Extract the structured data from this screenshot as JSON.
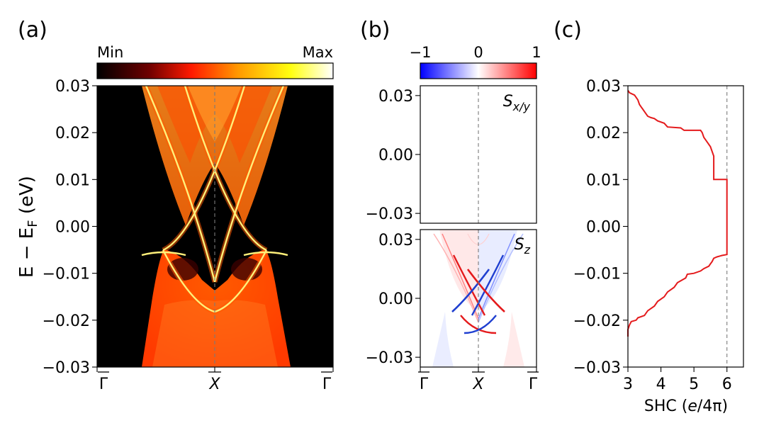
{
  "panels": {
    "a": {
      "letter": "(a)"
    },
    "b": {
      "letter": "(b)"
    },
    "c": {
      "letter": "(c)"
    }
  },
  "colorbar_a": {
    "min_label": "Min",
    "max_label": "Max"
  },
  "colorbar_b": {
    "ticks": [
      "−1",
      "0",
      "1"
    ]
  },
  "ylabel": {
    "main": "E − E",
    "sub": "F",
    "unit": " (eV)"
  },
  "kpoints": {
    "gamma": "Γ",
    "x": "X"
  },
  "subplot_labels": {
    "sxy_base": "S",
    "sxy_sub": "x/y",
    "sz_base": "S",
    "sz_sub": "z"
  },
  "colors": {
    "colormap_hot": [
      "#000000",
      "#7a0000",
      "#ff1a00",
      "#ff9900",
      "#ffff00",
      "#ffffff"
    ],
    "colormap_bwr": [
      "#0000ff",
      "#ffffff",
      "#ff0000"
    ],
    "shc_line": "#e41a1c",
    "up_spin": "#e41a1c",
    "down_spin": "#1f3fd0"
  },
  "chart_data": [
    {
      "type": "heatmap",
      "panel": "(a)",
      "title": "",
      "xlabel": "",
      "ylabel": "E − EF (eV)",
      "xticks": [
        "Γ",
        "X",
        "Γ"
      ],
      "yticks": [
        "0.03",
        "0.02",
        "0.01",
        "0.00",
        "−0.01",
        "−0.02",
        "−0.03"
      ],
      "ylim": [
        -0.03,
        0.03
      ],
      "colorbar": {
        "labels": [
          "Min",
          "Max"
        ],
        "colormap": "hot"
      },
      "grid": false
    },
    {
      "type": "heatmap",
      "panel": "(b) top",
      "title": "",
      "annotation": "Sx/y",
      "yticks": [
        "0.03",
        "0.00",
        "−0.03"
      ],
      "ylim": [
        -0.035,
        0.035
      ],
      "colorbar": {
        "ticks": [
          -1,
          0,
          1
        ],
        "colormap": "bwr"
      }
    },
    {
      "type": "heatmap",
      "panel": "(b) bottom",
      "title": "",
      "annotation": "Sz",
      "xticks": [
        "Γ",
        "X",
        "Γ"
      ],
      "yticks": [
        "0.03",
        "0.00",
        "−0.03"
      ],
      "ylim": [
        -0.035,
        0.035
      ],
      "colorbar": {
        "ticks": [
          -1,
          0,
          1
        ],
        "colormap": "bwr"
      }
    },
    {
      "type": "line",
      "panel": "(c)",
      "title": "",
      "xlabel": "SHC (e/4π)",
      "ylabel": "",
      "xlim": [
        3,
        6.5
      ],
      "ylim": [
        -0.03,
        0.03
      ],
      "xticks": [
        "3",
        "4",
        "5",
        "6"
      ],
      "yticks": [
        "0.03",
        "0.02",
        "0.01",
        "0.00",
        "−0.01",
        "−0.02",
        "−0.03"
      ],
      "reference_line_x": 6,
      "series": [
        {
          "x": [
            3.0,
            3.05,
            3.2,
            3.3,
            3.35,
            3.4,
            3.45,
            3.5,
            3.55,
            3.6,
            3.7,
            3.8,
            3.9,
            4.1,
            4.2,
            4.6,
            4.7,
            5.2,
            5.25,
            5.3,
            5.4,
            5.5,
            5.6,
            5.6,
            6.0,
            6.0,
            5.85,
            5.7,
            5.6,
            5.55,
            5.5,
            5.45,
            5.3,
            5.2,
            5.0,
            4.8,
            4.75,
            4.5,
            4.4,
            4.2,
            4.1,
            3.9,
            3.8,
            3.6,
            3.5,
            3.3,
            3.25,
            3.1,
            3.05,
            3.0,
            3.0
          ],
          "y": [
            0.029,
            0.0285,
            0.028,
            0.027,
            0.026,
            0.0255,
            0.025,
            0.0245,
            0.024,
            0.0235,
            0.0232,
            0.023,
            0.0225,
            0.022,
            0.0212,
            0.021,
            0.0205,
            0.0205,
            0.02,
            0.019,
            0.018,
            0.017,
            0.015,
            0.01,
            0.01,
            -0.006,
            -0.0062,
            -0.0065,
            -0.0068,
            -0.0075,
            -0.008,
            -0.0085,
            -0.009,
            -0.0095,
            -0.01,
            -0.0102,
            -0.011,
            -0.012,
            -0.013,
            -0.014,
            -0.015,
            -0.016,
            -0.017,
            -0.018,
            -0.019,
            -0.0195,
            -0.02,
            -0.0203,
            -0.021,
            -0.022,
            -0.0235
          ]
        }
      ],
      "grid": false
    }
  ]
}
